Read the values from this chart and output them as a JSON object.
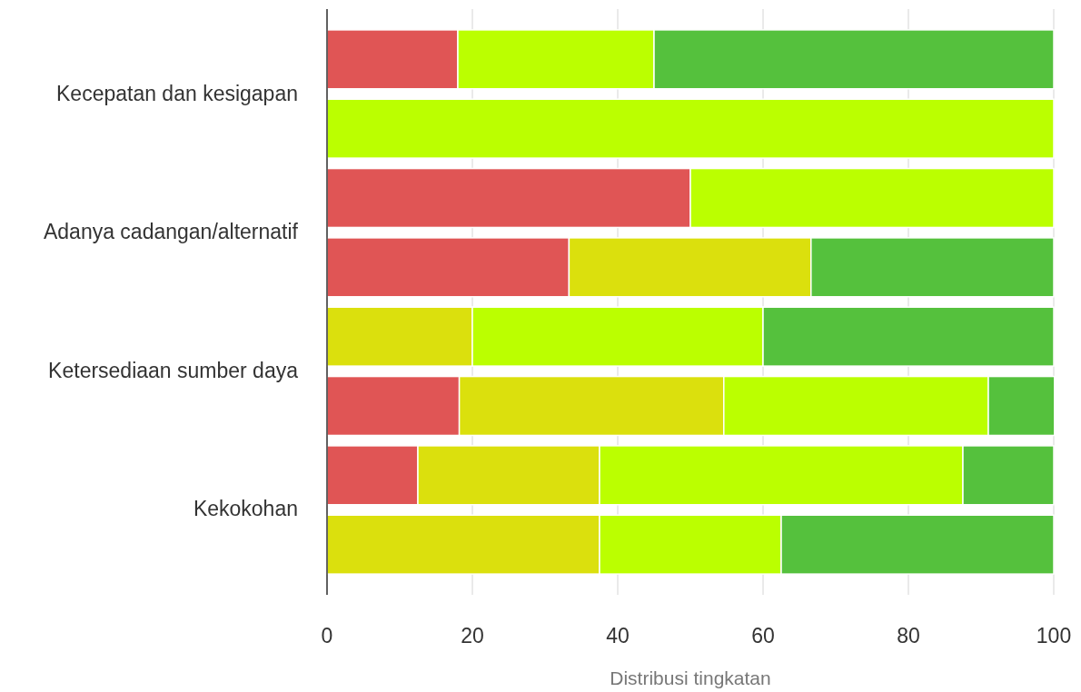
{
  "chart_data": {
    "type": "bar",
    "orientation": "horizontal",
    "stacked": true,
    "xlabel": "Distribusi tingkatan",
    "categories": [
      "Kecepatan dan kesigapan",
      null,
      "Adanya cadangan/alternatif",
      null,
      "Ketersediaan sumber daya",
      null,
      "Kekokohan",
      null
    ],
    "series": [
      {
        "color": "#e05555",
        "values": [
          18,
          null,
          50,
          33.3,
          null,
          18.2,
          12.5,
          null
        ]
      },
      {
        "color": "#dbe00d",
        "values": [
          null,
          null,
          null,
          33.3,
          20,
          36.4,
          25,
          37.5
        ]
      },
      {
        "color": "#bbff00",
        "values": [
          27,
          100,
          50,
          null,
          40,
          36.4,
          50,
          25
        ]
      },
      {
        "color": "#55c13d",
        "values": [
          55,
          null,
          null,
          33.4,
          40,
          9.1,
          12.5,
          37.5
        ]
      }
    ],
    "xlim": [
      0,
      100
    ],
    "xticks": [
      0,
      20,
      40,
      60,
      80,
      100
    ],
    "grid": "x",
    "legend": false
  }
}
